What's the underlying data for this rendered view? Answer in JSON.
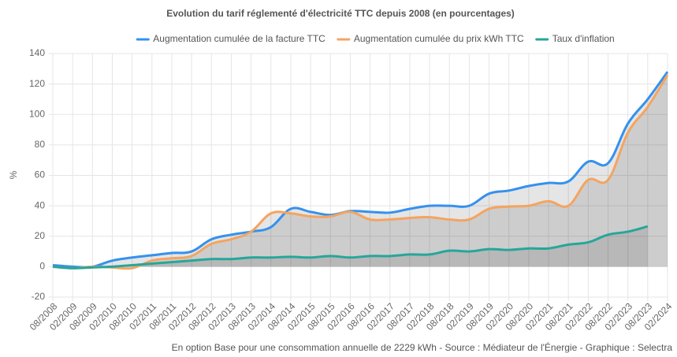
{
  "chart_data": {
    "type": "line",
    "title": "Evolution du tarif réglementé d'électricité TTC depuis 2008 (en pourcentages)",
    "y_label": "%",
    "footer": "En option Base pour une consommation annuelle de 2229 kWh - Source : Médiateur de l'Énergie - Graphique : Selectra",
    "categories": [
      "08/2008",
      "02/2009",
      "08/2009",
      "02/2010",
      "08/2010",
      "02/2011",
      "08/2011",
      "02/2012",
      "08/2012",
      "02/2013",
      "08/2013",
      "02/2014",
      "08/2014",
      "02/2015",
      "08/2015",
      "02/2016",
      "08/2016",
      "02/2017",
      "08/2017",
      "02/2018",
      "08/2018",
      "02/2019",
      "08/2019",
      "02/2020",
      "08/2020",
      "02/2021",
      "08/2021",
      "02/2022",
      "08/2022",
      "02/2023",
      "08/2023",
      "02/2024"
    ],
    "series": [
      {
        "name": "Augmentation cumulée de la facture TTC",
        "color": "#3591ee",
        "values": [
          1,
          0,
          0,
          4,
          6,
          7.5,
          9,
          10,
          18,
          21,
          23,
          26,
          38,
          36,
          34,
          36.5,
          36,
          35.5,
          38,
          40,
          40,
          40,
          48,
          50,
          53,
          55,
          56,
          69,
          68,
          94,
          110,
          128
        ]
      },
      {
        "name": "Augmentation cumulée du prix kWh TTC",
        "color": "#f4a460",
        "values": [
          0,
          -1,
          0,
          -0.5,
          -1,
          4,
          5.5,
          7,
          15,
          18,
          23,
          35,
          35,
          33,
          33,
          36,
          31,
          31,
          32,
          32.5,
          31,
          31,
          38,
          39.5,
          40,
          43,
          40,
          57,
          57,
          88,
          105,
          126
        ]
      },
      {
        "name": "Taux d'inflation",
        "color": "#26a69a",
        "values": [
          0,
          -1,
          -0.5,
          0,
          1,
          2,
          3,
          4,
          5,
          5,
          6,
          6,
          6.5,
          6,
          7,
          6,
          7,
          7,
          8,
          8,
          10.5,
          10,
          11.5,
          11,
          12,
          12,
          14.5,
          16,
          21,
          23,
          26.5,
          null
        ]
      }
    ],
    "ylim": [
      -20,
      140
    ],
    "yticks": [
      -20,
      0,
      20,
      40,
      60,
      80,
      100,
      120,
      140
    ],
    "grid": true,
    "legend": "top"
  }
}
